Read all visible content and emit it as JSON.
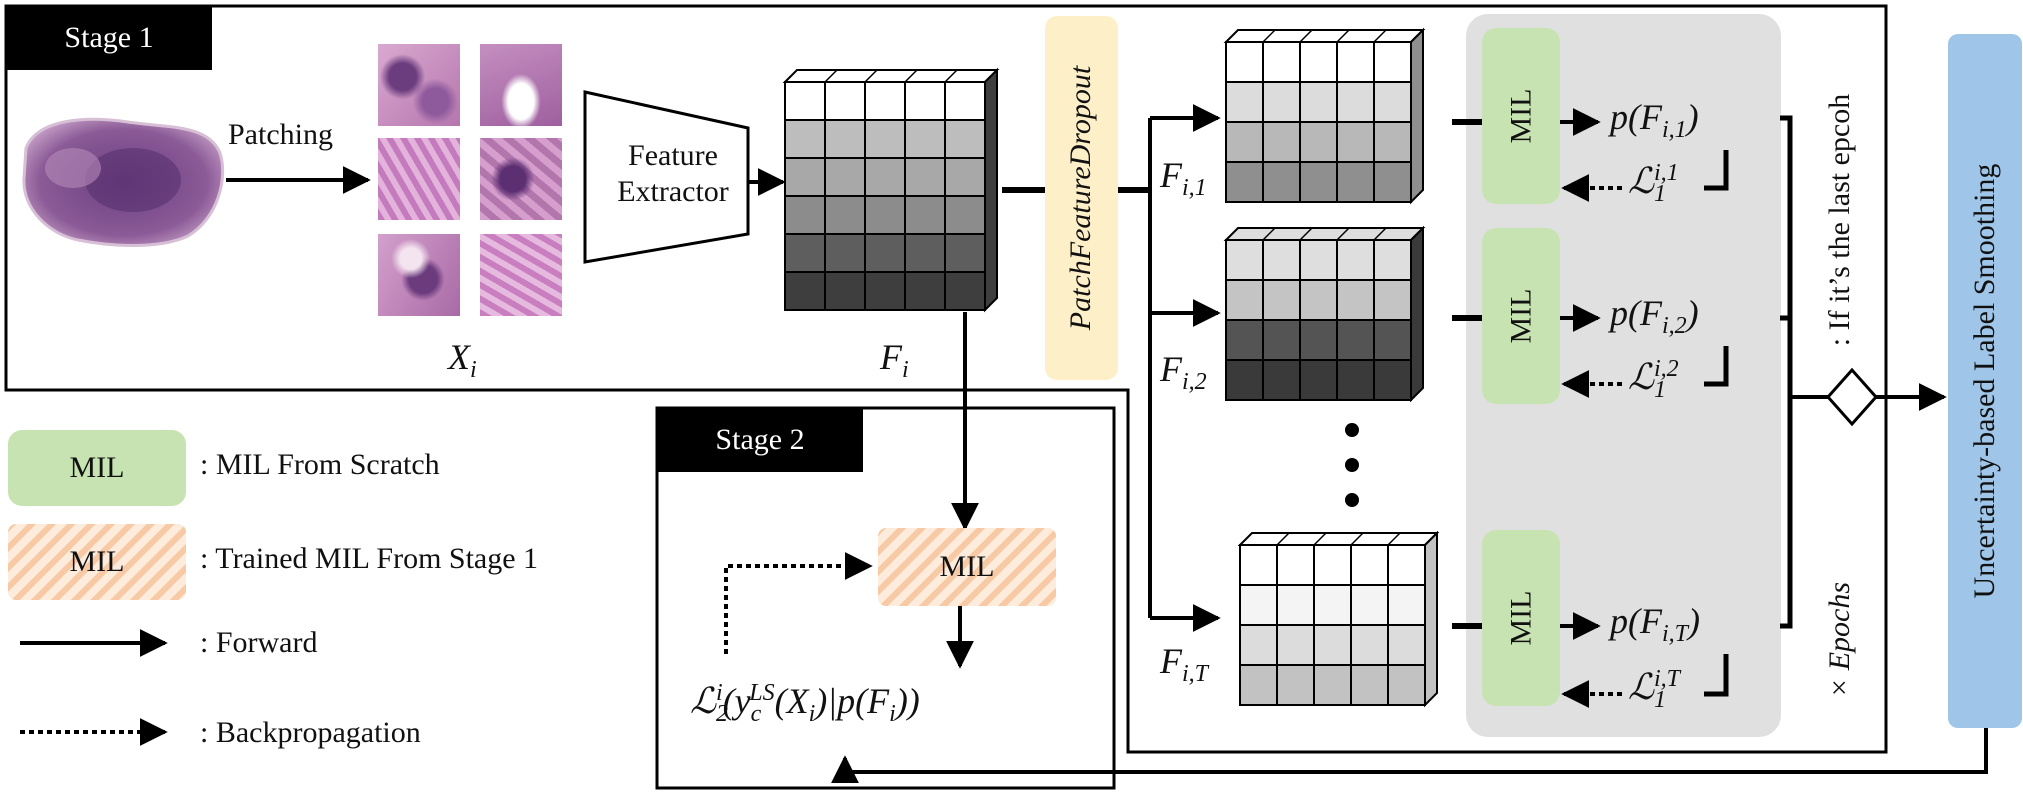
{
  "stage1": {
    "tag": "Stage 1"
  },
  "stage2": {
    "tag": "Stage 2"
  },
  "patching_label": "Patching",
  "feature_extractor": {
    "line1": "Feature",
    "line2": "Extractor"
  },
  "patch_feature_dropout": "PatchFeatureDropout",
  "labels": {
    "xi": "X",
    "xi_sub": "i",
    "fi": "F",
    "fi_sub": "i",
    "fi1_sub": "i,1",
    "fi2_sub": "i,2",
    "fiT_sub": "i,T"
  },
  "mil_label": "MIL",
  "outputs": {
    "p1": "p(F",
    "p1_sub": "i,1",
    "p2_sub": "i,2",
    "pT_sub": "i,T",
    "loss_sub": "1",
    "loss1_sup": "i,1",
    "loss2_sup": "i,2",
    "lossT_sup": "i,T"
  },
  "last_epoch_note": ": If it’s the last epcoh",
  "epochs_note": "× Epochs",
  "label_smoothing": "Uncertainty-based Label Smoothing",
  "stage2_loss": {
    "sym": "ℒ",
    "sub": "2",
    "sup": "i",
    "y": "y",
    "y_sub": "c",
    "y_sup": "LS",
    "x": "(X",
    "x_sub": "i",
    "p": ")|p(F",
    "p_sub": "i"
  },
  "legend": {
    "mil_scratch": ": MIL From Scratch",
    "mil_trained": ": Trained MIL From Stage 1",
    "forward": ": Forward",
    "backprop": ": Backpropagation"
  },
  "colors": {
    "mil_green": "#c7e3b1",
    "dropout_yellow": "#fdf0c9",
    "gray_panel": "#e0e0e0",
    "label_blue": "#9fc6e8",
    "hatch_orange": "#f8c9a5"
  }
}
